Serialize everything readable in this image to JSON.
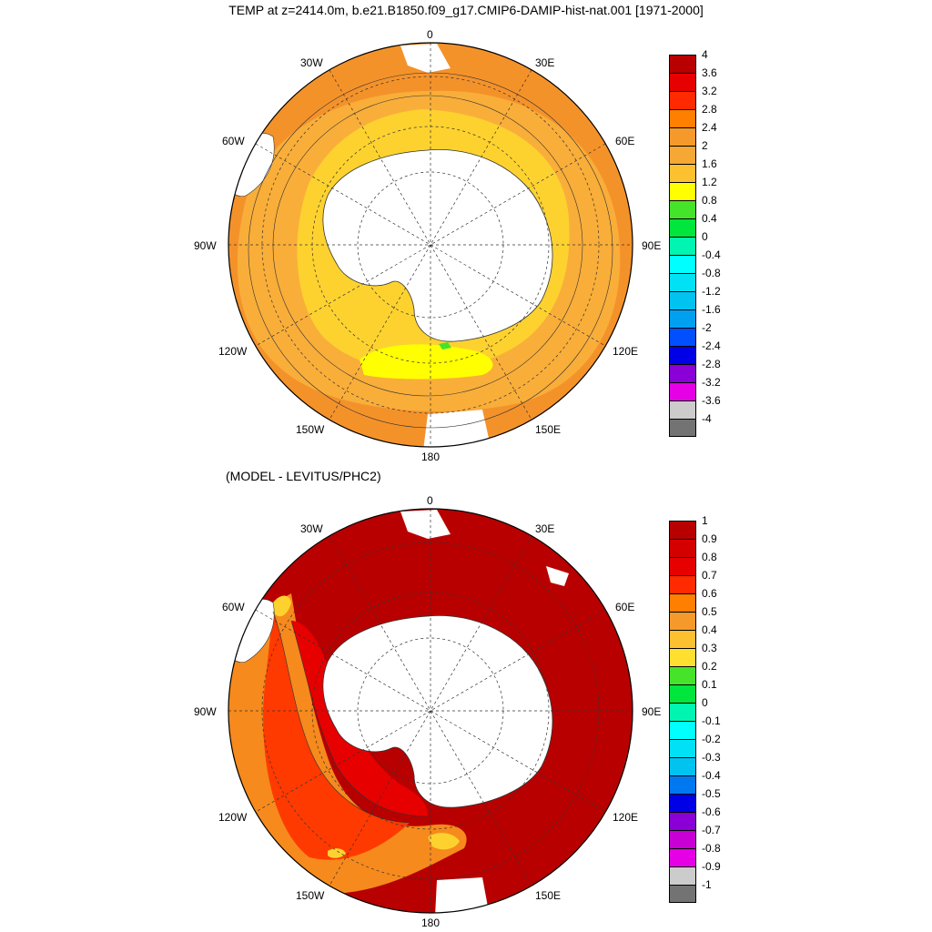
{
  "title": "TEMP at z=2414.0m, b.e21.B1850.f09_g17.CMIP6-DAMIP-hist-nat.001 [1971-2000]",
  "subtitle": "(MODEL - LEVITUS/PHC2)",
  "lon_labels": {
    "n0": "0",
    "n30e": "30E",
    "n60e": "60E",
    "n90e": "90E",
    "n120e": "120E",
    "n150e": "150E",
    "n180": "180",
    "n150w": "150W",
    "n120w": "120W",
    "n90w": "90W",
    "n60w": "60W",
    "n30w": "30W"
  },
  "colorbar_top": {
    "levels": [
      "4",
      "3.6",
      "3.2",
      "2.8",
      "2.4",
      "2",
      "1.6",
      "1.2",
      "0.8",
      "0.4",
      "0",
      "-0.4",
      "-0.8",
      "-1.2",
      "-1.6",
      "-2",
      "-2.4",
      "-2.8",
      "-3.2",
      "-3.6",
      "-4"
    ],
    "colors": [
      "#b80000",
      "#e60000",
      "#ff2a00",
      "#ff7f00",
      "#f59a2a",
      "#f5a833",
      "#fdc02f",
      "#ffff00",
      "#45e32a",
      "#00e63c",
      "#00f5b2",
      "#00ffff",
      "#00e1f5",
      "#00c3f0",
      "#00a0f0",
      "#0050ff",
      "#0000e6",
      "#8a00d6",
      "#e600e6",
      "#cccccc",
      "#737373"
    ]
  },
  "colorbar_bottom": {
    "levels": [
      "1",
      "0.9",
      "0.8",
      "0.7",
      "0.6",
      "0.5",
      "0.4",
      "0.3",
      "0.2",
      "0.1",
      "0",
      "-0.1",
      "-0.2",
      "-0.3",
      "-0.4",
      "-0.5",
      "-0.6",
      "-0.7",
      "-0.8",
      "-0.9",
      "-1"
    ],
    "colors": [
      "#b80000",
      "#d40000",
      "#e60000",
      "#ff2a00",
      "#ff7f00",
      "#f59a2a",
      "#fdc02f",
      "#ffe030",
      "#45e32a",
      "#00e63c",
      "#00f5b2",
      "#00ffff",
      "#00e1f5",
      "#00c3f0",
      "#0078f0",
      "#0000e6",
      "#8a00d6",
      "#c800d6",
      "#e600e6",
      "#cccccc",
      "#737373"
    ]
  },
  "field_colors": {
    "land": "#ffffff",
    "top_outer": "#f4922a",
    "top_mid": "#f9ae3a",
    "top_inner": "#fdd22f",
    "top_core": "#ffff00",
    "bot_main": "#b80000",
    "bot_orange": "#f68a1c",
    "bot_red": "#e60000",
    "bot_redorange": "#ff3a00",
    "bot_yellow": "#fdd22f"
  }
}
